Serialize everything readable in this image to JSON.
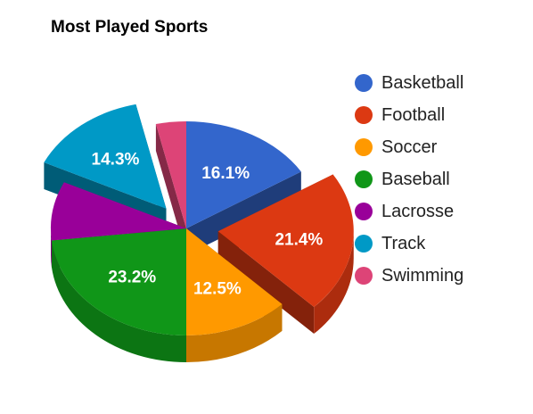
{
  "chart_data": {
    "type": "pie",
    "title": "Most Played Sports",
    "legend_position": "right",
    "is_3d": true,
    "exploded": [
      "Football",
      "Track"
    ],
    "slices": [
      {
        "name": "Basketball",
        "value": 16.1,
        "label": "16.1%",
        "color": "#3366cc"
      },
      {
        "name": "Football",
        "value": 21.4,
        "label": "21.4%",
        "color": "#dc3912"
      },
      {
        "name": "Soccer",
        "value": 12.5,
        "label": "12.5%",
        "color": "#ff9900"
      },
      {
        "name": "Baseball",
        "value": 23.2,
        "label": "23.2%",
        "color": "#109618"
      },
      {
        "name": "Lacrosse",
        "value": 8.9,
        "label": "",
        "color": "#990099"
      },
      {
        "name": "Track",
        "value": 14.3,
        "label": "14.3%",
        "color": "#0099c6"
      },
      {
        "name": "Swimming",
        "value": 3.6,
        "label": "",
        "color": "#dd4477"
      }
    ]
  }
}
